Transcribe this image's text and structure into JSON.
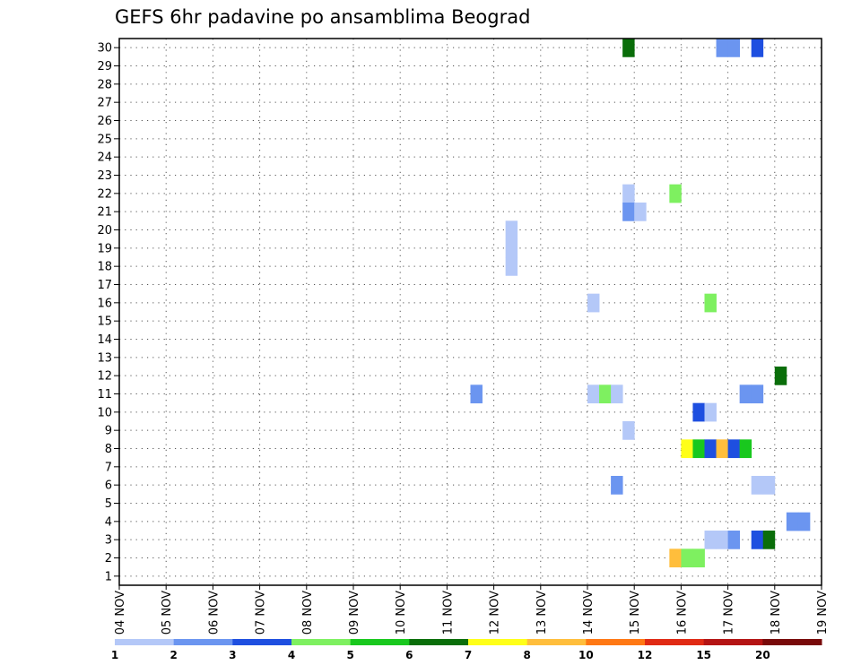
{
  "chart_data": {
    "type": "heatmap",
    "title": "GEFS 6hr padavine po ansamblima Beograd",
    "xlabel": "",
    "ylabel": "",
    "x_ticks": [
      "04 NOV",
      "05 NOV",
      "06 NOV",
      "07 NOV",
      "08 NOV",
      "09 NOV",
      "10 NOV",
      "11 NOV",
      "12 NOV",
      "13 NOV",
      "14 NOV",
      "15 NOV",
      "16 NOV",
      "17 NOV",
      "18 NOV",
      "19 NOV"
    ],
    "y_ticks": [
      "1",
      "2",
      "3",
      "4",
      "5",
      "6",
      "7",
      "8",
      "9",
      "10",
      "11",
      "12",
      "13",
      "14",
      "15",
      "16",
      "17",
      "18",
      "19",
      "20",
      "21",
      "22",
      "23",
      "24",
      "25",
      "26",
      "27",
      "28",
      "29",
      "30"
    ],
    "xlim_days": [
      0,
      15
    ],
    "ylim": [
      0.5,
      30.5
    ],
    "grid": true,
    "color_levels": [
      {
        "label": "1",
        "color": "#b4c8f8"
      },
      {
        "label": "2",
        "color": "#6b95f0"
      },
      {
        "label": "3",
        "color": "#1e4fe0"
      },
      {
        "label": "4",
        "color": "#7ef060"
      },
      {
        "label": "5",
        "color": "#19c81e"
      },
      {
        "label": "6",
        "color": "#0a6e0a"
      },
      {
        "label": "7",
        "color": "#ffff19"
      },
      {
        "label": "8",
        "color": "#ffbe3c"
      },
      {
        "label": "10",
        "color": "#ff7814"
      },
      {
        "label": "12",
        "color": "#e02a14"
      },
      {
        "label": "15",
        "color": "#b41414"
      },
      {
        "label": "20",
        "color": "#780a0a"
      }
    ],
    "legend_labels": [
      "1",
      "2",
      "3",
      "4",
      "5",
      "6",
      "7",
      "8",
      "10",
      "12",
      "15",
      "20"
    ],
    "cells": [
      {
        "t": 10.75,
        "m": 30,
        "c": 5
      },
      {
        "t": 12.75,
        "m": 30,
        "c": 1
      },
      {
        "t": 13.0,
        "m": 30,
        "c": 1
      },
      {
        "t": 13.5,
        "m": 30,
        "c": 2
      },
      {
        "t": 10.75,
        "m": 22,
        "c": 0
      },
      {
        "t": 11.75,
        "m": 22,
        "c": 3
      },
      {
        "t": 10.75,
        "m": 21,
        "c": 1
      },
      {
        "t": 11.0,
        "m": 21,
        "c": 0
      },
      {
        "t": 8.25,
        "m": 20,
        "c": 0
      },
      {
        "t": 8.25,
        "m": 19,
        "c": 0
      },
      {
        "t": 8.25,
        "m": 18,
        "c": 0
      },
      {
        "t": 10.0,
        "m": 16,
        "c": 0
      },
      {
        "t": 12.5,
        "m": 16,
        "c": 3
      },
      {
        "t": 14.0,
        "m": 12,
        "c": 5
      },
      {
        "t": 7.5,
        "m": 11,
        "c": 1
      },
      {
        "t": 10.0,
        "m": 11,
        "c": 0
      },
      {
        "t": 10.25,
        "m": 11,
        "c": 3
      },
      {
        "t": 10.5,
        "m": 11,
        "c": 0
      },
      {
        "t": 13.25,
        "m": 11,
        "c": 1
      },
      {
        "t": 13.5,
        "m": 11,
        "c": 1
      },
      {
        "t": 12.25,
        "m": 10,
        "c": 2
      },
      {
        "t": 12.5,
        "m": 10,
        "c": 0
      },
      {
        "t": 10.75,
        "m": 9,
        "c": 0
      },
      {
        "t": 12.0,
        "m": 8,
        "c": 6
      },
      {
        "t": 12.25,
        "m": 8,
        "c": 4
      },
      {
        "t": 12.5,
        "m": 8,
        "c": 2
      },
      {
        "t": 12.75,
        "m": 8,
        "c": 7
      },
      {
        "t": 13.0,
        "m": 8,
        "c": 2
      },
      {
        "t": 13.25,
        "m": 8,
        "c": 4
      },
      {
        "t": 10.5,
        "m": 6,
        "c": 1
      },
      {
        "t": 13.5,
        "m": 6,
        "c": 0
      },
      {
        "t": 13.75,
        "m": 6,
        "c": 0
      },
      {
        "t": 14.25,
        "m": 4,
        "c": 1
      },
      {
        "t": 14.5,
        "m": 4,
        "c": 1
      },
      {
        "t": 12.5,
        "m": 3,
        "c": 0
      },
      {
        "t": 12.75,
        "m": 3,
        "c": 0
      },
      {
        "t": 13.0,
        "m": 3,
        "c": 1
      },
      {
        "t": 13.5,
        "m": 3,
        "c": 2
      },
      {
        "t": 13.75,
        "m": 3,
        "c": 5
      },
      {
        "t": 11.75,
        "m": 2,
        "c": 7
      },
      {
        "t": 12.0,
        "m": 2,
        "c": 3
      },
      {
        "t": 12.25,
        "m": 2,
        "c": 3
      }
    ]
  }
}
